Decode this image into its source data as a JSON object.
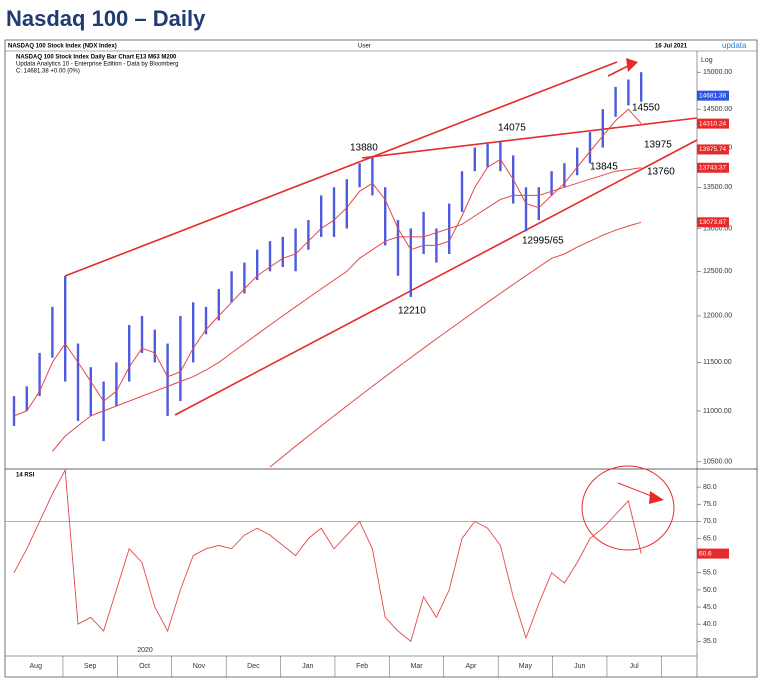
{
  "chart_data": [
    {
      "type": "price-bars",
      "title": "Nasdaq 100 – Daily",
      "header": {
        "instrument": "NASDAQ 100 Stock Index (NDX Index)",
        "user": "User",
        "date": "16 Jul 2021",
        "brand": "updata",
        "subtitle": "NASDAQ 100 Stock Index Daily Bar Chart   E13   M63   M200",
        "source": "Updata Analytics 10 - Enterprise Edition - Data by Bloomberg",
        "close": "C: 14681.38 +0.00 (0%)",
        "scale_label": "Log"
      },
      "log_scale": true,
      "ylim": [
        10440,
        15280
      ],
      "yticks": [
        {
          "value": 15000,
          "label": "15000.00"
        },
        {
          "value": 14500,
          "label": "14500.00"
        },
        {
          "value": 14000,
          "label": "14000.00"
        },
        {
          "value": 13500,
          "label": "13500.00"
        },
        {
          "value": 13000,
          "label": "13000.00"
        },
        {
          "value": 12500,
          "label": "12500.00"
        },
        {
          "value": 12000,
          "label": "12000.00"
        },
        {
          "value": 11500,
          "label": "11500.00"
        },
        {
          "value": 11000,
          "label": "11000.00"
        },
        {
          "value": 10500,
          "label": "10500.00"
        }
      ],
      "bar_color": "#4d5bdc",
      "high": [
        11150,
        11250,
        11600,
        12100,
        12440,
        11700,
        11450,
        11300,
        11500,
        11900,
        12000,
        11850,
        11700,
        12000,
        12150,
        12100,
        12300,
        12500,
        12600,
        12750,
        12850,
        12900,
        13000,
        13100,
        13400,
        13500,
        13600,
        13800,
        13880,
        13500,
        13100,
        13000,
        13200,
        13000,
        13300,
        13700,
        14000,
        14050,
        14075,
        13900,
        13500,
        13500,
        13700,
        13800,
        14000,
        14200,
        14500,
        14800,
        14900,
        15000
      ],
      "low": [
        10850,
        11000,
        11150,
        11550,
        11300,
        10900,
        10950,
        10700,
        11050,
        11300,
        11600,
        11500,
        10950,
        11100,
        11500,
        11800,
        11950,
        12150,
        12250,
        12400,
        12500,
        12550,
        12500,
        12750,
        12900,
        12900,
        13000,
        13500,
        13400,
        12800,
        12450,
        12210,
        12700,
        12600,
        12700,
        13200,
        13700,
        13750,
        13700,
        13300,
        12965,
        13100,
        13400,
        13500,
        13650,
        13800,
        14000,
        14400,
        14550,
        14600
      ],
      "series": [
        {
          "name": "E13",
          "color": "#e34848",
          "values": [
            10950,
            11000,
            11200,
            11500,
            11700,
            11500,
            11300,
            11100,
            11200,
            11450,
            11650,
            11600,
            11350,
            11400,
            11650,
            11850,
            12000,
            12150,
            12300,
            12450,
            12550,
            12650,
            12700,
            12850,
            13000,
            13100,
            13250,
            13450,
            13550,
            13350,
            13000,
            12750,
            12800,
            12800,
            12850,
            13150,
            13500,
            13750,
            13850,
            13600,
            13300,
            13250,
            13400,
            13550,
            13750,
            13950,
            14150,
            14350,
            14500,
            14310.24
          ]
        },
        {
          "name": "M63",
          "color": "#e34848",
          "values": [
            null,
            null,
            null,
            10600,
            10750,
            10850,
            10950,
            11000,
            11050,
            11100,
            11150,
            11200,
            11250,
            11300,
            11350,
            11420,
            11500,
            11600,
            11700,
            11800,
            11900,
            12000,
            12100,
            12200,
            12300,
            12400,
            12500,
            12650,
            12750,
            12850,
            12900,
            12900,
            12900,
            12950,
            13000,
            13050,
            13150,
            13250,
            13350,
            13400,
            13400,
            13400,
            13450,
            13500,
            13550,
            13600,
            13650,
            13700,
            13720,
            13743.37
          ]
        },
        {
          "name": "M200",
          "color": "#e34848",
          "values": [
            null,
            null,
            null,
            null,
            null,
            null,
            null,
            null,
            null,
            null,
            null,
            null,
            null,
            null,
            null,
            null,
            null,
            null,
            null,
            null,
            10450,
            10550,
            10650,
            10750,
            10850,
            10950,
            11050,
            11150,
            11250,
            11350,
            11450,
            11550,
            11650,
            11750,
            11850,
            11950,
            12050,
            12150,
            12250,
            12350,
            12450,
            12550,
            12650,
            12700,
            12780,
            12850,
            12920,
            12980,
            13030,
            13073.87
          ]
        }
      ],
      "price_tags": [
        {
          "value": 14681.38,
          "color": "#2f55e0"
        },
        {
          "value": 14310.24,
          "color": "#e52b2b"
        },
        {
          "value": 13975.74,
          "color": "#e52b2b"
        },
        {
          "value": 13743.37,
          "color": "#e52b2b"
        },
        {
          "value": 13073.87,
          "color": "#e52b2b"
        }
      ],
      "annotations": [
        "13880",
        "14075",
        "14550",
        "13975",
        "13845",
        "13760",
        "12210",
        "12995/65"
      ],
      "months": [
        "Aug",
        "Sep",
        "Oct",
        "Nov",
        "Dec",
        "Jan",
        "Feb",
        "Mar",
        "Apr",
        "May",
        "Jun",
        "Jul"
      ],
      "year_label": "2020"
    },
    {
      "type": "line",
      "title": "14 RSI",
      "color": "#e34848",
      "ylim": [
        31,
        85
      ],
      "yticks": [
        {
          "value": 80,
          "label": "80.0"
        },
        {
          "value": 75,
          "label": "75.0"
        },
        {
          "value": 70,
          "label": "70.0"
        },
        {
          "value": 65,
          "label": "65.0"
        },
        {
          "value": 60,
          "label": "60.0"
        },
        {
          "value": 55,
          "label": "55.0"
        },
        {
          "value": 50,
          "label": "50.0"
        },
        {
          "value": 45,
          "label": "45.0"
        },
        {
          "value": 40,
          "label": "40.0"
        },
        {
          "value": 35,
          "label": "35.0"
        }
      ],
      "reference_lines": [
        70
      ],
      "values": [
        55,
        62,
        70,
        78,
        85,
        40,
        42,
        38,
        50,
        62,
        58,
        45,
        38,
        50,
        60,
        62,
        63,
        62,
        66,
        68,
        66,
        63,
        60,
        65,
        68,
        62,
        66,
        70,
        62,
        42,
        38,
        35,
        48,
        42,
        50,
        65,
        70,
        68,
        63,
        48,
        36,
        46,
        55,
        52,
        58,
        65,
        68,
        72,
        76,
        60.6
      ],
      "last_tag": 60.6
    }
  ]
}
